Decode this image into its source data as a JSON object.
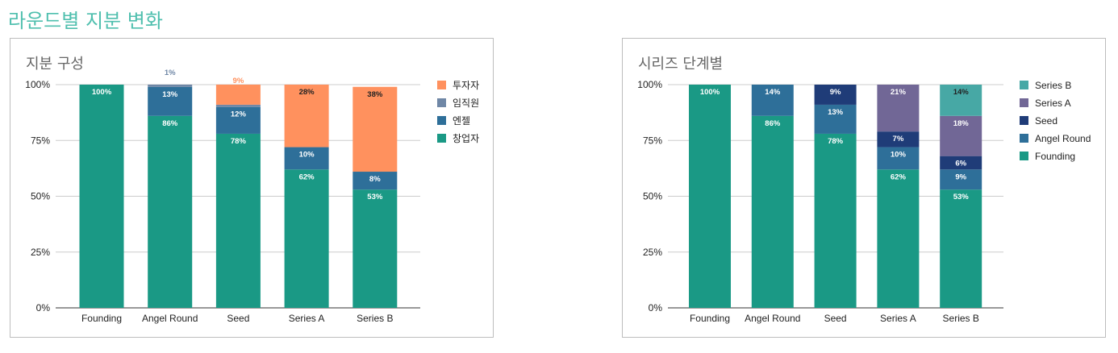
{
  "page_title": "라운드별 지분 변화",
  "chart_data": [
    {
      "type": "bar",
      "stacked": true,
      "title": "지분 구성",
      "categories": [
        "Founding",
        "Angel Round",
        "Seed",
        "Series A",
        "Series B"
      ],
      "yticks": [
        "0%",
        "25%",
        "50%",
        "75%",
        "100%"
      ],
      "ylim": [
        0,
        100
      ],
      "legend": "right",
      "series": [
        {
          "name": "창업자",
          "color": "#1a9985",
          "values": [
            100,
            86,
            78,
            62,
            53
          ],
          "labels": [
            "100%",
            "86%",
            "78%",
            "62%",
            "53%"
          ]
        },
        {
          "name": "엔젤",
          "color": "#2e6f99",
          "values": [
            0,
            13,
            12,
            10,
            8
          ],
          "labels": [
            "",
            "13%",
            "12%",
            "10%",
            "8%"
          ]
        },
        {
          "name": "임직원",
          "color": "#6f87a6",
          "values": [
            0,
            1,
            1,
            0,
            0
          ],
          "labels": [
            "",
            "1%",
            "1%",
            "0%",
            "0%"
          ]
        },
        {
          "name": "투자자",
          "color": "#ff915e",
          "values": [
            0,
            0,
            9,
            28,
            38
          ],
          "labels": [
            "",
            "",
            "9%",
            "28%",
            "38%"
          ]
        }
      ]
    },
    {
      "type": "bar",
      "stacked": true,
      "title": "시리즈 단계별",
      "categories": [
        "Founding",
        "Angel Round",
        "Seed",
        "Series A",
        "Series B"
      ],
      "yticks": [
        "0%",
        "25%",
        "50%",
        "75%",
        "100%"
      ],
      "ylim": [
        0,
        100
      ],
      "legend": "right",
      "series": [
        {
          "name": "Founding",
          "color": "#1a9985",
          "values": [
            100,
            86,
            78,
            62,
            53
          ],
          "labels": [
            "100%",
            "86%",
            "78%",
            "62%",
            "53%"
          ]
        },
        {
          "name": "Angel Round",
          "color": "#2e6f99",
          "values": [
            0,
            14,
            13,
            10,
            9
          ],
          "labels": [
            "",
            "14%",
            "13%",
            "10%",
            "9%"
          ]
        },
        {
          "name": "Seed",
          "color": "#1f3c78",
          "values": [
            0,
            0,
            9,
            7,
            6
          ],
          "labels": [
            "",
            "",
            "9%",
            "7%",
            "6%"
          ]
        },
        {
          "name": "Series A",
          "color": "#716796",
          "values": [
            0,
            0,
            0,
            21,
            18
          ],
          "labels": [
            "",
            "",
            "",
            "21%",
            "18%"
          ]
        },
        {
          "name": "Series B",
          "color": "#47a8a5",
          "values": [
            0,
            0,
            0,
            0,
            14
          ],
          "labels": [
            "",
            "",
            "",
            "",
            "14%"
          ]
        }
      ]
    }
  ]
}
